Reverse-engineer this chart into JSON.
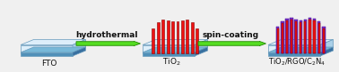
{
  "bg_color": "#f0f0f0",
  "fto_label": "FTO",
  "tio2_label": "TiO$_2$",
  "tio2_rgo_label": "TiO$_2$/RGO/C$_2$N$_4$",
  "arrow1_label": "hydrothermal",
  "arrow2_label": "spin-coating",
  "plate_top_color": "#ddeefa",
  "plate_front_color": "#b0d8f0",
  "plate_side_color": "#80b8d8",
  "plate_edge_color": "#6699bb",
  "plate_base_color": "#78b8d8",
  "plate_base_front": "#5090b8",
  "plate_base_side": "#3870a0",
  "rod_red_color": "#ee1111",
  "rod_red_edge": "#880000",
  "rod_purple_color": "#7733cc",
  "rod_purple_edge": "#440099",
  "arrow_fill": "#55dd22",
  "arrow_edge": "#228800",
  "text_color": "#111111",
  "label_fontsize": 6.5,
  "arrow_fontsize": 6.5,
  "fig_w": 3.78,
  "fig_h": 0.81,
  "dpi": 100
}
